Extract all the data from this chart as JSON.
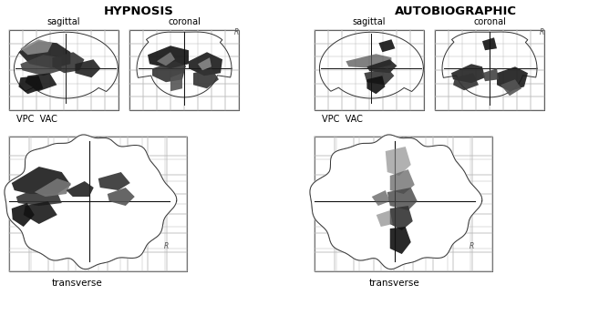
{
  "title_left": "HYPNOSIS",
  "title_right": "AUTOBIOGRAPHIC",
  "label_sagittal": "sagittal",
  "label_coronal": "coronal",
  "label_transverse": "transverse",
  "label_vpc_vac": "VPC  VAC",
  "figure_bg": "#ffffff"
}
